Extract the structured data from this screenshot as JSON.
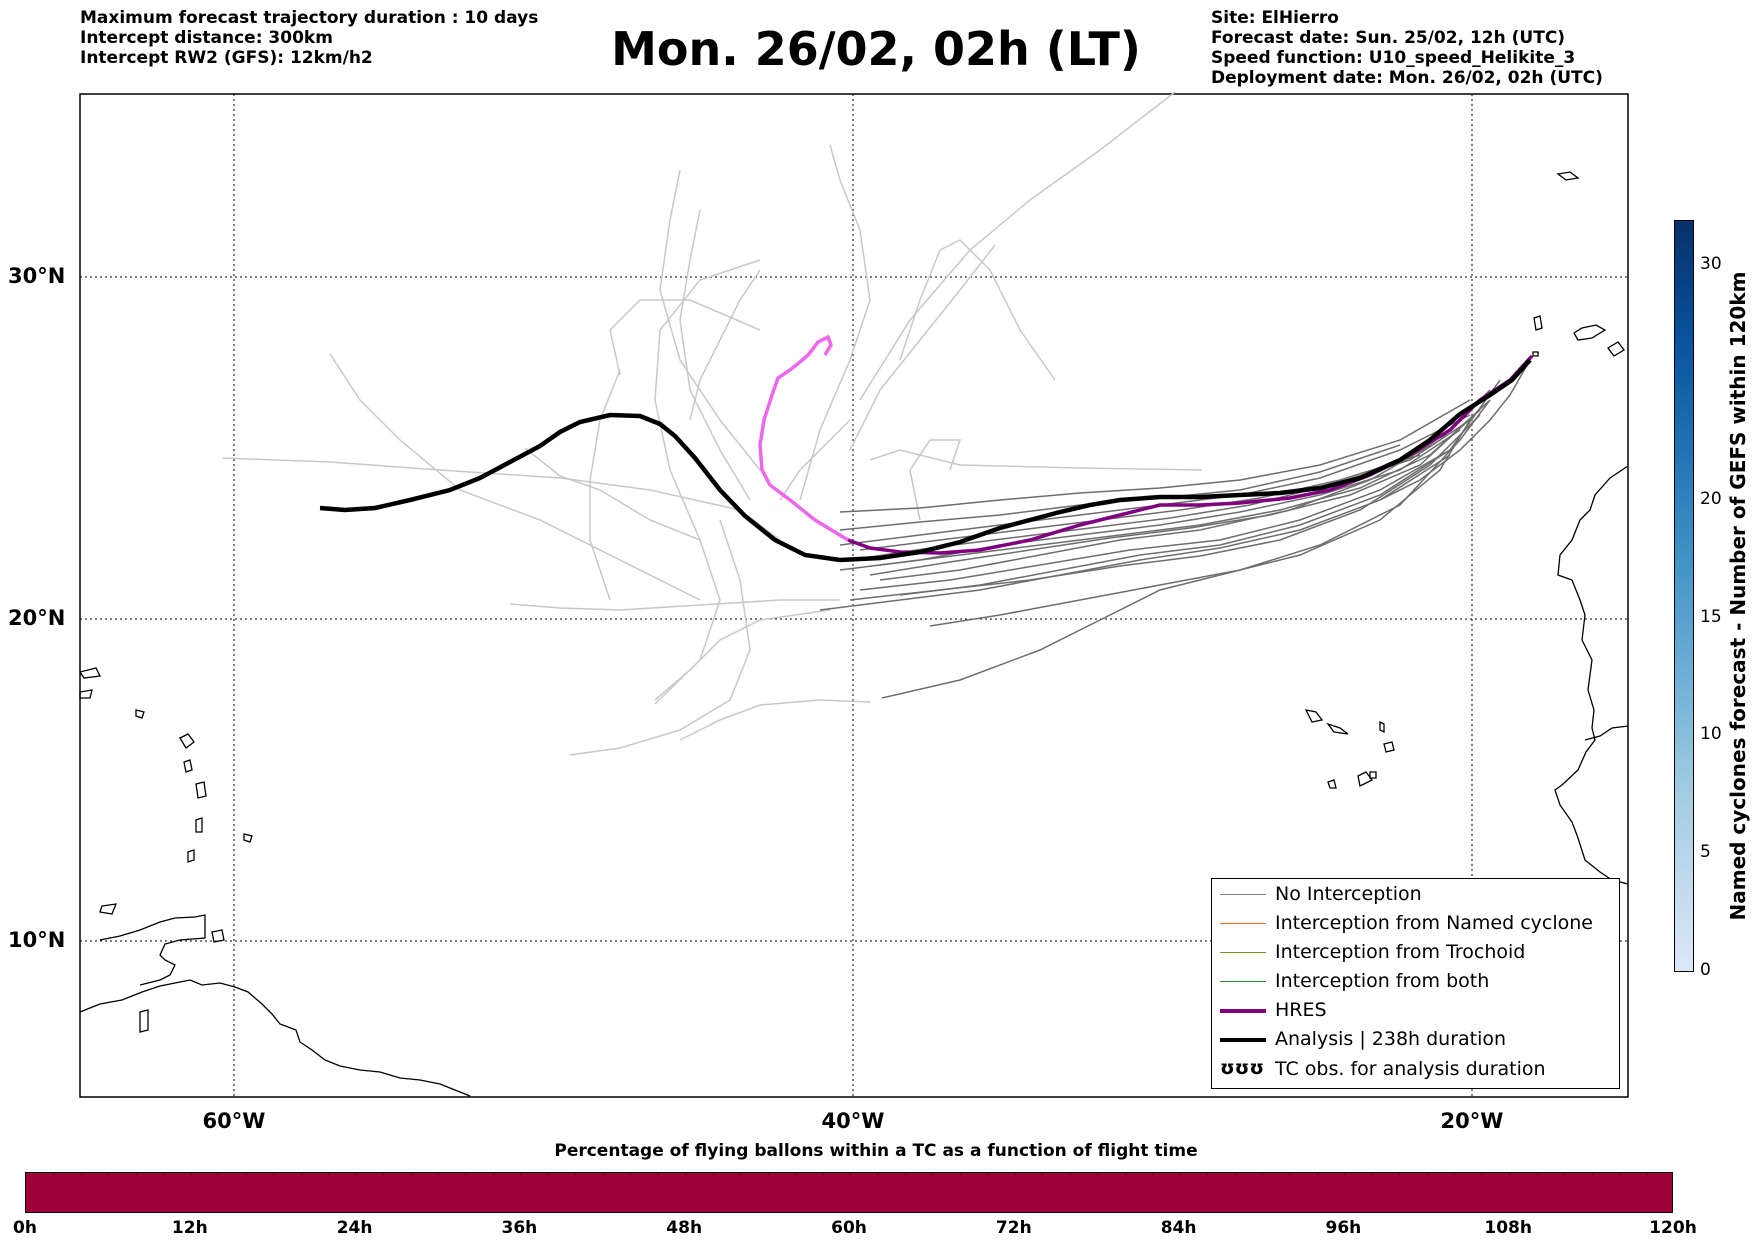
{
  "header_left": {
    "line1": "Maximum forecast trajectory duration : 10 days",
    "line2": "Intercept distance: 300km",
    "line3": "Intercept RW2 (GFS):  12km/h2"
  },
  "title": "Mon. 26/02, 02h (LT)",
  "header_right": {
    "line1": "Site: ElHierro",
    "line2": "Forecast date: Sun. 25/02, 12h (UTC)",
    "line3": "Speed function: U10_speed_Helikite_3",
    "line4": "Deployment date: Mon. 26/02, 02h (UTC)"
  },
  "map": {
    "lat_ticks": [
      "30°N",
      "20°N",
      "10°N"
    ],
    "lon_ticks": [
      "60°W",
      "40°W",
      "20°W"
    ],
    "grid": "dotted",
    "lon_range": [
      -65,
      -15
    ],
    "lat_range": [
      5.3,
      35.3
    ]
  },
  "legend": {
    "items": [
      {
        "label": "No Interception",
        "color": "#808080"
      },
      {
        "label": "Interception from Named cyclone",
        "color": "#ff6a1a"
      },
      {
        "label": "Interception from Trochoid",
        "color": "#808a20"
      },
      {
        "label": "Interception from both",
        "color": "#2e8b2e"
      },
      {
        "label": "HRES",
        "color": "#800080"
      },
      {
        "label": "Analysis | 238h duration",
        "color": "#000000"
      },
      {
        "label": "TC obs. for analysis duration",
        "symbol": "ʊʊʊ"
      }
    ]
  },
  "colorbar": {
    "label": "Named cyclones forecast - Number of GEFS within 120km",
    "ticks": [
      "30",
      "20",
      "15",
      "10",
      "5",
      "0"
    ],
    "range": [
      0,
      32
    ]
  },
  "bottom_bar": {
    "title": "Percentage of flying ballons within a TC as a function of flight time",
    "color": "#9e003a",
    "ticks": [
      "0h",
      "12h",
      "24h",
      "36h",
      "48h",
      "60h",
      "72h",
      "84h",
      "96h",
      "108h",
      "120h"
    ]
  }
}
